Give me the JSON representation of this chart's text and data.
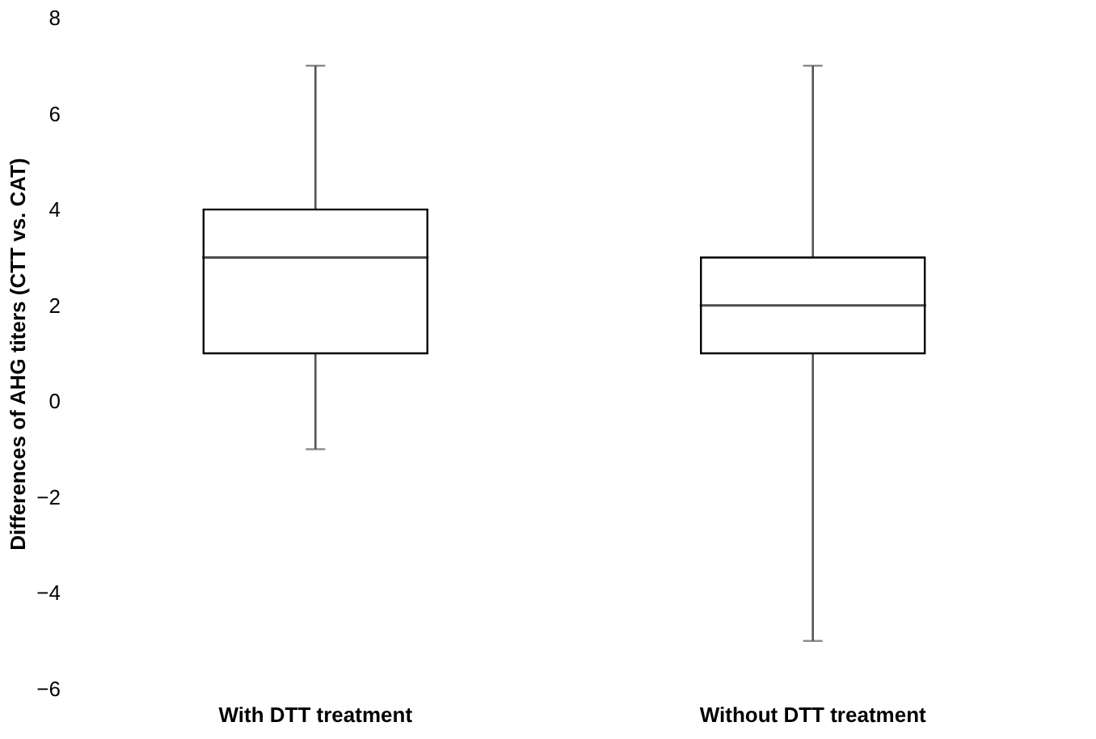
{
  "chart_data": {
    "type": "box",
    "ylabel": "Differences of AHG titers (CTT vs. CAT)",
    "categories": [
      "With DTT treatment",
      "Without DTT treatment"
    ],
    "boxes": [
      {
        "low": -1,
        "q1": 1,
        "median": 3,
        "q3": 4,
        "high": 7
      },
      {
        "low": -5,
        "q1": 1,
        "median": 2,
        "q3": 3,
        "high": 7
      }
    ],
    "ylim": [
      -6,
      8
    ],
    "yticks": [
      -6,
      -4,
      -2,
      0,
      2,
      4,
      6,
      8
    ],
    "grid": false
  }
}
